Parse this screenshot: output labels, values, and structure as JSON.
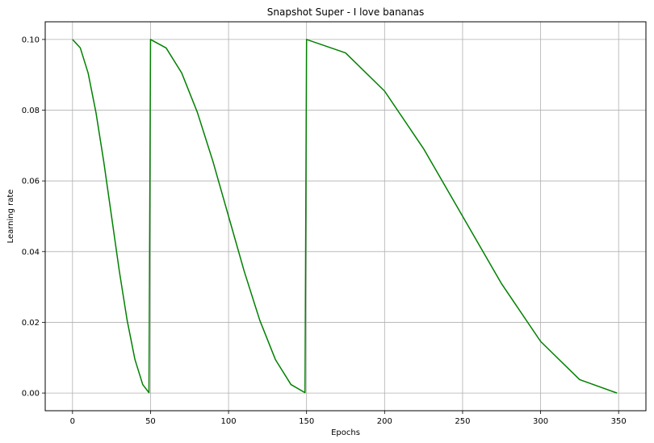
{
  "chart_data": {
    "type": "line",
    "title": "Snapshot Super - I love bananas",
    "xlabel": "Epochs",
    "ylabel": "Learning rate",
    "xlim": [
      -17.5,
      367.5
    ],
    "ylim": [
      -0.005,
      0.105
    ],
    "xticks": [
      0,
      50,
      100,
      150,
      200,
      250,
      300,
      350
    ],
    "yticks": [
      0.0,
      0.02,
      0.04,
      0.06,
      0.08,
      0.1
    ],
    "ytick_labels": [
      "0.00",
      "0.02",
      "0.04",
      "0.06",
      "0.08",
      "0.10"
    ],
    "grid": true,
    "legend": "none",
    "series": [
      {
        "color": "#008000",
        "x": [
          0,
          5,
          10,
          15,
          20,
          25,
          30,
          35,
          40,
          45,
          49,
          50,
          60,
          70,
          80,
          90,
          100,
          110,
          120,
          130,
          140,
          149,
          150,
          175,
          200,
          225,
          250,
          275,
          300,
          325,
          349
        ],
        "y": [
          0.1,
          0.0976,
          0.0905,
          0.0794,
          0.0655,
          0.05,
          0.0345,
          0.0206,
          0.0095,
          0.0024,
          0.0001,
          0.1,
          0.0976,
          0.0905,
          0.0794,
          0.0655,
          0.05,
          0.0345,
          0.0206,
          0.0095,
          0.0024,
          0.0001,
          0.1,
          0.0962,
          0.0854,
          0.0691,
          0.05,
          0.0309,
          0.0146,
          0.0038,
          0.0
        ]
      }
    ]
  }
}
